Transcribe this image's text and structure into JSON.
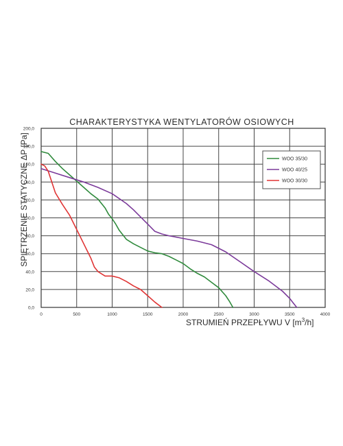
{
  "chart_data": {
    "type": "line",
    "title": "CHARAKTERYSTYKA WENTYLATORÓW OSIOWYCH",
    "xlabel_main": "STRUMIEŃ PRZEPŁYWU V [m",
    "xlabel_sup": "3",
    "xlabel_end": "/h]",
    "ylabel": "SPIĘTRZENIE STATYCZNE ΔP [Pa]",
    "xlim": [
      0,
      4000
    ],
    "ylim": [
      0,
      200
    ],
    "x_ticks": [
      0,
      500,
      1000,
      1500,
      2000,
      2500,
      3000,
      3500,
      4000
    ],
    "x_tick_labels": [
      "0",
      "500",
      "1000",
      "1500",
      "2000",
      "2500",
      "3000",
      "3500",
      "4000"
    ],
    "y_ticks": [
      0,
      20,
      40,
      60,
      80,
      100,
      120,
      140,
      160,
      180,
      200
    ],
    "y_tick_labels": [
      "0,0",
      "20,0",
      "40,0",
      "60,0",
      "80,0",
      "100,0",
      "120,0",
      "140,0",
      "160,0",
      "180,0",
      "200,0"
    ],
    "grid": true,
    "legend_position": "top-right",
    "series": [
      {
        "name": "WOO 35/30",
        "color": "#2f8a3c",
        "x": [
          0,
          100,
          200,
          300,
          400,
          500,
          600,
          700,
          800,
          900,
          950,
          1000,
          1050,
          1100,
          1200,
          1300,
          1400,
          1500,
          1600,
          1700,
          1800,
          1900,
          2000,
          2100,
          2200,
          2300,
          2400,
          2500,
          2600,
          2650,
          2700
        ],
        "y": [
          174,
          172,
          163,
          155,
          148,
          141,
          134,
          127,
          121,
          111,
          104,
          99,
          93,
          86,
          76,
          71,
          67,
          63,
          61,
          60,
          57,
          53,
          49,
          43,
          38,
          34,
          28,
          22,
          13,
          7,
          0
        ]
      },
      {
        "name": "WOO 40/25",
        "color": "#7b3a9a",
        "x": [
          0,
          200,
          400,
          600,
          800,
          1000,
          1200,
          1300,
          1400,
          1500,
          1600,
          1700,
          1800,
          2000,
          2200,
          2400,
          2500,
          2600,
          2800,
          3000,
          3200,
          3400,
          3500,
          3550,
          3600
        ],
        "y": [
          155,
          150,
          145,
          140,
          134,
          127,
          116,
          109,
          101,
          93,
          85,
          82,
          80,
          77,
          74,
          70,
          66,
          62,
          51,
          40,
          30,
          18,
          10,
          5,
          0
        ]
      },
      {
        "name": "WOO 30/30",
        "color": "#e03434",
        "x": [
          0,
          50,
          100,
          150,
          200,
          300,
          400,
          500,
          600,
          700,
          750,
          800,
          900,
          1000,
          1100,
          1200,
          1300,
          1400,
          1500,
          1600,
          1700
        ],
        "y": [
          160,
          158,
          152,
          140,
          128,
          115,
          103,
          87,
          71,
          55,
          45,
          40,
          35,
          35,
          33,
          29,
          24,
          20,
          13,
          6,
          0
        ]
      }
    ]
  }
}
